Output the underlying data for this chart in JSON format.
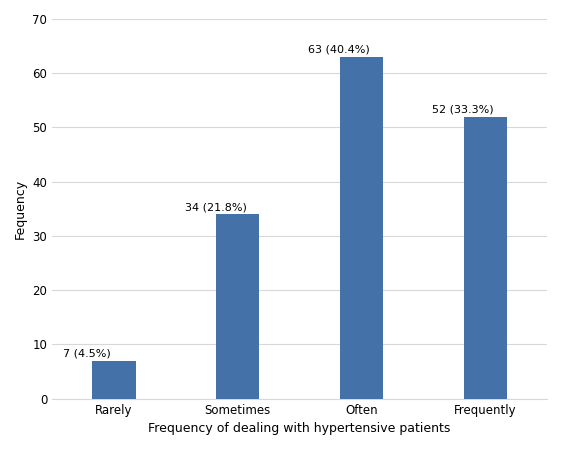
{
  "categories": [
    "Rarely",
    "Sometimes",
    "Often",
    "Frequently"
  ],
  "values": [
    7,
    34,
    63,
    52
  ],
  "percentages": [
    "4.5%",
    "21.8%",
    "40.4%",
    "33.3%"
  ],
  "bar_color": "#4472a8",
  "ylabel": "Fequency",
  "xlabel": "Frequency of dealing with hypertensive patients",
  "ylim": [
    0,
    70
  ],
  "yticks": [
    0,
    10,
    20,
    30,
    40,
    50,
    60,
    70
  ],
  "label_fontsize": 8,
  "axis_label_fontsize": 9,
  "tick_fontsize": 8.5,
  "bar_width": 0.35,
  "background_color": "#ffffff",
  "grid_color": "#d8d8d8",
  "label_offsets": [
    -0.22,
    -0.18,
    -0.18,
    -0.18
  ]
}
